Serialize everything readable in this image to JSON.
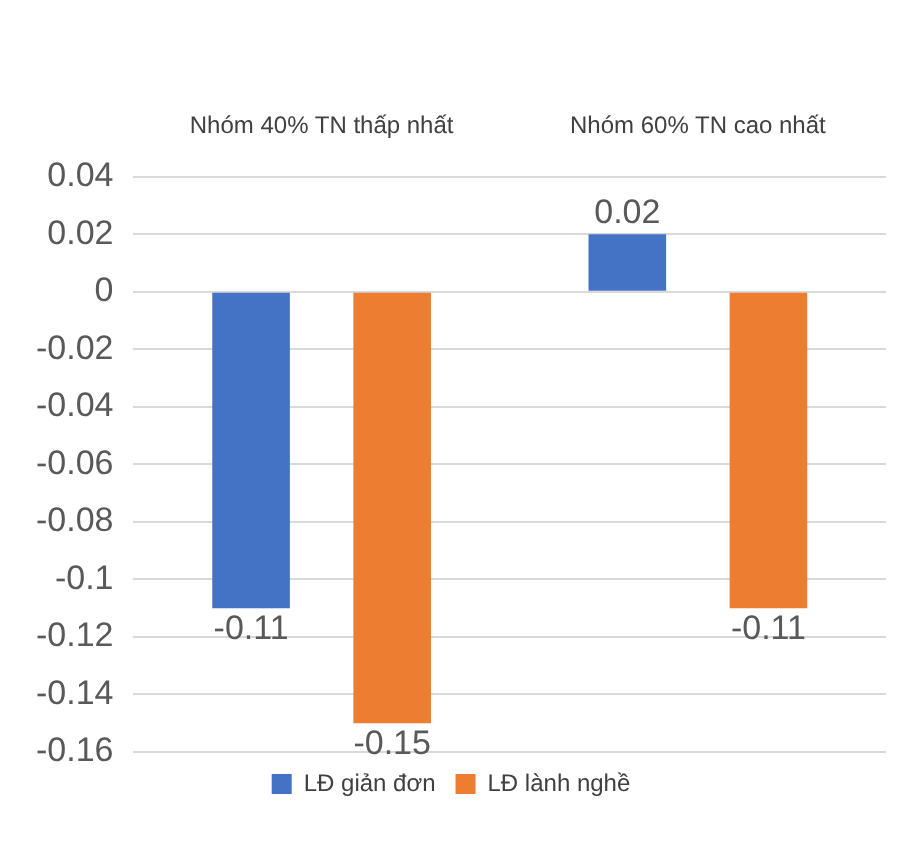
{
  "chart_data": {
    "type": "bar",
    "categories": [
      "Nhóm 40% TN thấp nhất",
      "Nhóm 60% TN cao nhất"
    ],
    "series": [
      {
        "name": "LĐ giản đơn",
        "color": "#4472c4",
        "values": [
          -0.11,
          0.02
        ]
      },
      {
        "name": "LĐ lành nghề",
        "color": "#ed7d31",
        "values": [
          -0.15,
          -0.11
        ]
      }
    ],
    "ylim": [
      -0.16,
      0.04
    ],
    "yticks": [
      0.04,
      0.02,
      0,
      -0.02,
      -0.04,
      -0.06,
      -0.08,
      -0.1,
      -0.12,
      -0.14,
      -0.16
    ],
    "grid": "y",
    "legend": "bottom",
    "data_labels": true
  }
}
